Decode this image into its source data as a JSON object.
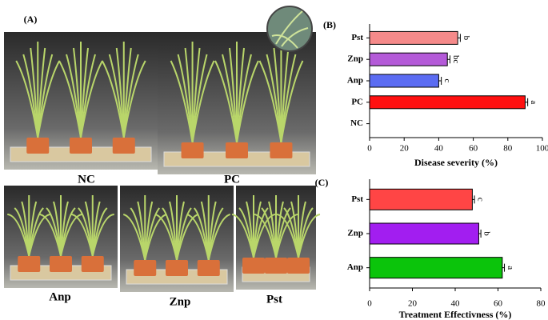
{
  "panel_a": {
    "label": "(A)",
    "photos": [
      "NC",
      "PC",
      "Anp",
      "Znp",
      "Pst"
    ]
  },
  "chart_data": [
    {
      "type": "hbar",
      "panel": "(B)",
      "xlabel": "Disease severity (%)",
      "categories": [
        "Pst",
        "Znp",
        "Anp",
        "PC",
        "NC"
      ],
      "values": [
        51,
        45,
        40,
        90,
        0
      ],
      "errors": [
        1.5,
        1.5,
        1.5,
        1.5,
        0
      ],
      "value_labels": [
        "b",
        "bc",
        "c",
        "a",
        null
      ],
      "colors": [
        "#f58a8a",
        "#b45ad8",
        "#5b6cf2",
        "#ff1010",
        "#888888"
      ],
      "xlim": [
        0,
        100
      ],
      "xticks": [
        0,
        20,
        40,
        60,
        80,
        100
      ]
    },
    {
      "type": "hbar",
      "panel": "(C)",
      "xlabel": "Treatment Effectivness (%)",
      "categories": [
        "Pst",
        "Znp",
        "Anp"
      ],
      "values": [
        48,
        51,
        62
      ],
      "errors": [
        1,
        1,
        1
      ],
      "value_labels": [
        "c",
        "b",
        "a"
      ],
      "colors": [
        "#ff4545",
        "#a21ef0",
        "#0bc40b"
      ],
      "xlim": [
        0,
        80
      ],
      "xticks": [
        0,
        20,
        40,
        60,
        80
      ]
    }
  ]
}
